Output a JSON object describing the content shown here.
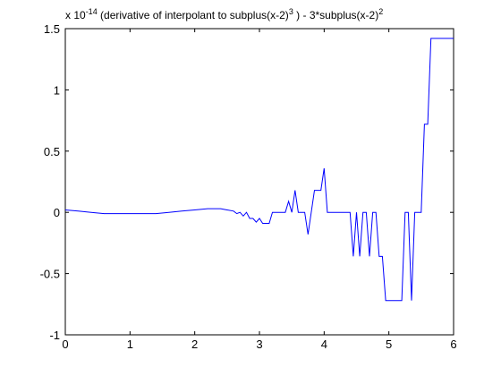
{
  "chart_data": {
    "type": "line",
    "title": {
      "prefix": "x 10",
      "exponent": "-14",
      "text_a": " (derivative of interpolant to subplus(x-2)",
      "sup_a": "3",
      "text_b": " )  - 3*subplus(x-2)",
      "sup_b": "2"
    },
    "xlabel": "",
    "ylabel": "",
    "xlim": [
      0,
      6
    ],
    "ylim": [
      -1,
      1.5
    ],
    "x_ticks": [
      0,
      1,
      2,
      3,
      4,
      5,
      6
    ],
    "x_tick_labels": [
      "0",
      "1",
      "2",
      "3",
      "4",
      "5",
      "6"
    ],
    "y_ticks": [
      -1,
      -0.5,
      0,
      0.5,
      1,
      1.5
    ],
    "y_tick_labels": [
      "-1",
      "-0.5",
      "0",
      "0.5",
      "1",
      "1.5"
    ],
    "grid": false,
    "line_color": "#0000ff",
    "series": [
      {
        "x": [
          0,
          0.2,
          0.4,
          0.6,
          0.8,
          1.0,
          1.2,
          1.4,
          1.6,
          1.8,
          2.0,
          2.2,
          2.4,
          2.5,
          2.6,
          2.65,
          2.7,
          2.75,
          2.8,
          2.85,
          2.9,
          2.95,
          3.0,
          3.05,
          3.1,
          3.15,
          3.2,
          3.25,
          3.3,
          3.35,
          3.4,
          3.45,
          3.5,
          3.55,
          3.6,
          3.65,
          3.7,
          3.75,
          3.8,
          3.85,
          3.9,
          3.95,
          4.0,
          4.05,
          4.1,
          4.15,
          4.2,
          4.25,
          4.3,
          4.35,
          4.4,
          4.45,
          4.5,
          4.55,
          4.6,
          4.65,
          4.7,
          4.75,
          4.8,
          4.85,
          4.9,
          4.95,
          5.0,
          5.05,
          5.1,
          5.15,
          5.2,
          5.25,
          5.3,
          5.35,
          5.4,
          5.45,
          5.5,
          5.55,
          5.6,
          5.65,
          5.7,
          5.75,
          5.8,
          5.85,
          5.9,
          5.95,
          6.0
        ],
        "y": [
          0.02,
          0.01,
          0.0,
          -0.01,
          -0.01,
          -0.01,
          -0.01,
          -0.01,
          0.0,
          0.01,
          0.02,
          0.03,
          0.03,
          0.02,
          0.01,
          -0.01,
          0.0,
          -0.03,
          0.0,
          -0.05,
          -0.05,
          -0.08,
          -0.05,
          -0.09,
          -0.09,
          -0.09,
          0.0,
          0.0,
          0.0,
          0.0,
          0.0,
          0.09,
          0.0,
          0.18,
          0.0,
          0.0,
          0.0,
          -0.18,
          0.0,
          0.18,
          0.18,
          0.18,
          0.36,
          0.0,
          0.0,
          0.0,
          0.0,
          0.0,
          0.0,
          0.0,
          0.0,
          -0.36,
          0.0,
          -0.36,
          0.0,
          0.0,
          -0.36,
          0.0,
          0.0,
          -0.36,
          -0.36,
          -0.72,
          -0.72,
          -0.72,
          -0.72,
          -0.72,
          -0.72,
          0.0,
          0.0,
          -0.72,
          0.0,
          0.0,
          0.0,
          0.72,
          0.72,
          1.42,
          1.42,
          1.42,
          1.42,
          1.42,
          1.42,
          1.42,
          1.42
        ]
      }
    ]
  }
}
